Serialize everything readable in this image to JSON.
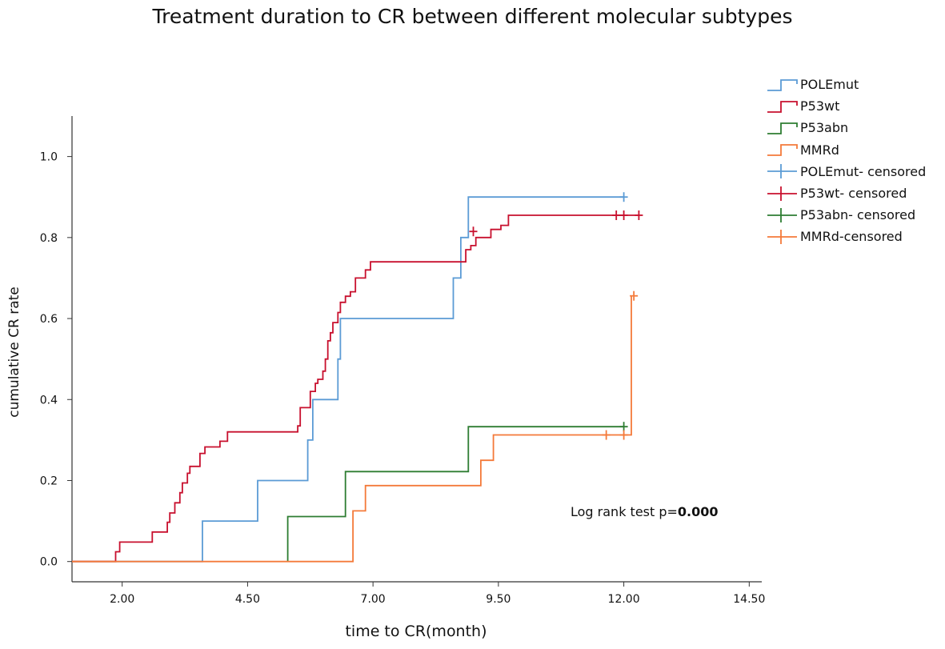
{
  "chart_data": {
    "type": "line",
    "subtype": "kaplan-meier-step",
    "title": "Treatment duration to CR between different molecular subtypes",
    "xlabel": "time to CR(month)",
    "ylabel": "cumulative CR rate",
    "xlim": [
      1.0,
      14.75
    ],
    "ylim": [
      -0.05,
      1.1
    ],
    "xticks": [
      "2.00",
      "4.50",
      "7.00",
      "9.50",
      "12.00",
      "14.50"
    ],
    "xtick_values": [
      2.0,
      4.5,
      7.0,
      9.5,
      12.0,
      14.5
    ],
    "yticks": [
      "0.0",
      "0.2",
      "0.4",
      "0.6",
      "0.8",
      "1.0"
    ],
    "ytick_values": [
      0.0,
      0.2,
      0.4,
      0.6,
      0.8,
      1.0
    ],
    "annotation": {
      "prefix": "Log rank test p=",
      "value": "0.000"
    },
    "legend": {
      "position": "top-right",
      "items": [
        {
          "label": "POLEmut",
          "kind": "step",
          "color": "#5b9bd5"
        },
        {
          "label": "P53wt",
          "kind": "step",
          "color": "#c8102e"
        },
        {
          "label": "P53abn",
          "kind": "step",
          "color": "#2e7d32"
        },
        {
          "label": "MMRd",
          "kind": "step",
          "color": "#f47a3a"
        },
        {
          "label": "POLEmut- censored",
          "kind": "censor",
          "color": "#5b9bd5"
        },
        {
          "label": "P53wt- censored",
          "kind": "censor",
          "color": "#c8102e"
        },
        {
          "label": "P53abn- censored",
          "kind": "censor",
          "color": "#2e7d32"
        },
        {
          "label": "MMRd-censored",
          "kind": "censor",
          "color": "#f47a3a"
        }
      ]
    },
    "series": [
      {
        "name": "POLEmut",
        "color": "#5b9bd5",
        "points": [
          [
            1.0,
            0.0
          ],
          [
            3.6,
            0.1
          ],
          [
            4.7,
            0.2
          ],
          [
            5.7,
            0.3
          ],
          [
            5.8,
            0.4
          ],
          [
            6.3,
            0.5
          ],
          [
            6.35,
            0.6
          ],
          [
            8.6,
            0.7
          ],
          [
            8.75,
            0.8
          ],
          [
            8.9,
            0.9
          ],
          [
            12.0,
            0.9
          ]
        ],
        "censored": [
          [
            12.0,
            0.9
          ]
        ]
      },
      {
        "name": "P53wt",
        "color": "#c8102e",
        "points": [
          [
            1.0,
            0.0
          ],
          [
            1.87,
            0.024
          ],
          [
            1.95,
            0.048
          ],
          [
            2.6,
            0.073
          ],
          [
            2.9,
            0.097
          ],
          [
            2.95,
            0.12
          ],
          [
            3.05,
            0.145
          ],
          [
            3.15,
            0.17
          ],
          [
            3.2,
            0.194
          ],
          [
            3.3,
            0.218
          ],
          [
            3.35,
            0.235
          ],
          [
            3.55,
            0.267
          ],
          [
            3.65,
            0.283
          ],
          [
            3.95,
            0.297
          ],
          [
            4.1,
            0.32
          ],
          [
            5.5,
            0.335
          ],
          [
            5.55,
            0.38
          ],
          [
            5.75,
            0.42
          ],
          [
            5.85,
            0.44
          ],
          [
            5.9,
            0.45
          ],
          [
            6.0,
            0.47
          ],
          [
            6.05,
            0.5
          ],
          [
            6.1,
            0.545
          ],
          [
            6.15,
            0.565
          ],
          [
            6.2,
            0.59
          ],
          [
            6.3,
            0.615
          ],
          [
            6.35,
            0.64
          ],
          [
            6.45,
            0.655
          ],
          [
            6.55,
            0.666
          ],
          [
            6.65,
            0.7
          ],
          [
            6.85,
            0.72
          ],
          [
            6.95,
            0.74
          ],
          [
            8.85,
            0.77
          ],
          [
            8.95,
            0.78
          ],
          [
            9.05,
            0.8
          ],
          [
            9.35,
            0.82
          ],
          [
            9.55,
            0.83
          ],
          [
            9.7,
            0.855
          ],
          [
            12.3,
            0.855
          ]
        ],
        "censored": [
          [
            9.0,
            0.815
          ],
          [
            11.85,
            0.855
          ],
          [
            12.0,
            0.855
          ],
          [
            12.3,
            0.855
          ]
        ]
      },
      {
        "name": "P53abn",
        "color": "#2e7d32",
        "points": [
          [
            5.3,
            0.0
          ],
          [
            5.3,
            0.111
          ],
          [
            6.45,
            0.222
          ],
          [
            8.9,
            0.333
          ],
          [
            12.0,
            0.333
          ]
        ],
        "censored": [
          [
            12.0,
            0.333
          ]
        ]
      },
      {
        "name": "MMRd",
        "color": "#f47a3a",
        "points": [
          [
            1.0,
            0.0
          ],
          [
            6.55,
            0.0
          ],
          [
            6.6,
            0.125
          ],
          [
            6.85,
            0.1875
          ],
          [
            9.15,
            0.25
          ],
          [
            9.4,
            0.3125
          ],
          [
            12.15,
            0.656
          ]
        ],
        "censored": [
          [
            11.65,
            0.3125
          ],
          [
            12.0,
            0.3125
          ],
          [
            12.2,
            0.656
          ]
        ]
      }
    ]
  }
}
